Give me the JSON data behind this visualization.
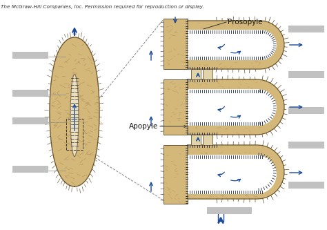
{
  "bg_color": "#ffffff",
  "copyright_text": "The McGraw-Hill Companies, Inc. Permission required for reproduction or display.",
  "copyright_fontsize": 5.2,
  "label_prosopyle": "Prosopyle",
  "label_apopyle": "Apopyle",
  "sponge_color": "#d4b87a",
  "sponge_color2": "#c8a96e",
  "sponge_inner_color": "#ede0b8",
  "sponge_wall_color": "#8b7355",
  "wall_edge_color": "#6b5535",
  "channel_color": "#f5eed8",
  "arrow_color": "#1a4a99",
  "label_box_color": "#bbbbbb",
  "dashed_line_color": "#888888",
  "choanocyte_color": "#1a2a4a",
  "spine_color": "#5a4a2a",
  "texture_color": "#9a7a4a"
}
